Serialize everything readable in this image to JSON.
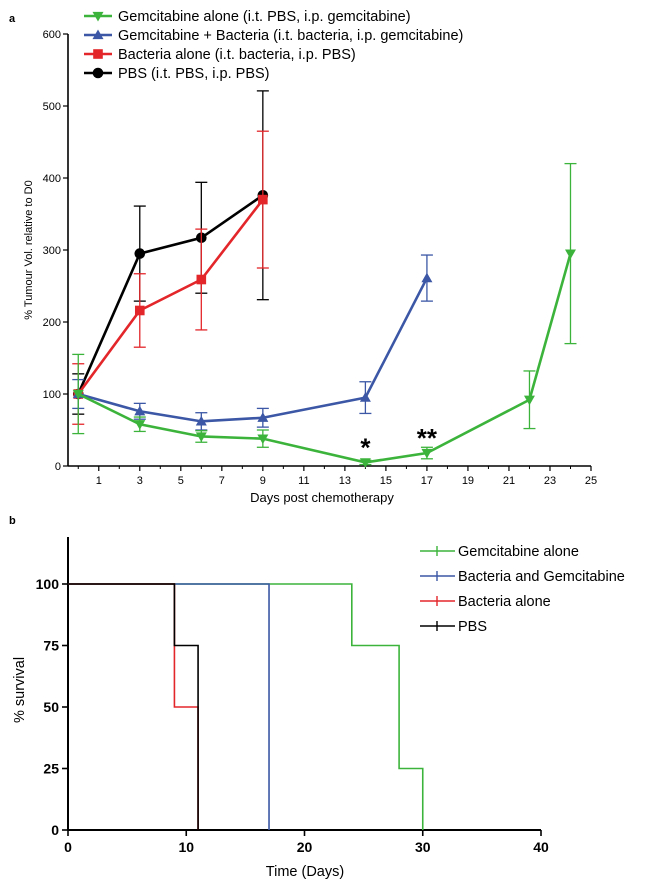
{
  "chart_data": [
    {
      "panel": "a",
      "type": "line",
      "xlabel": "Days post chemotherapy",
      "ylabel": "% Tumour Vol. relative to D0",
      "xlim": [
        -0.5,
        25
      ],
      "ylim": [
        0,
        600
      ],
      "xticks": [
        1,
        3,
        5,
        7,
        9,
        11,
        13,
        15,
        17,
        19,
        21,
        23,
        25
      ],
      "yticks": [
        0,
        100,
        200,
        300,
        400,
        500,
        600
      ],
      "legend_position": "top",
      "series": [
        {
          "name": "Gemcitabine alone (i.t. PBS, i.p. gemcitabine)",
          "color": "#3cb43c",
          "marker": "triangle-down",
          "x": [
            0,
            3,
            6,
            9,
            14,
            17,
            22,
            24
          ],
          "y": [
            100,
            58,
            41,
            38,
            5,
            18,
            92,
            295
          ],
          "err": [
            55,
            10,
            8,
            12,
            3,
            8,
            40,
            125
          ]
        },
        {
          "name": "Gemcitabine + Bacteria (i.t. bacteria, i.p. gemcitabine)",
          "color": "#3b57a5",
          "marker": "triangle-up",
          "x": [
            0,
            3,
            6,
            9,
            14,
            17
          ],
          "y": [
            100,
            76,
            62,
            67,
            95,
            261
          ],
          "err": [
            20,
            11,
            12,
            13,
            22,
            32
          ]
        },
        {
          "name": "Bacteria  alone (i.t. bacteria, i.p. PBS)",
          "color": "#e3262a",
          "marker": "square",
          "x": [
            0,
            3,
            6,
            9
          ],
          "y": [
            100,
            216,
            259,
            370
          ],
          "err": [
            42,
            51,
            70,
            95
          ]
        },
        {
          "name": "PBS (i.t. PBS, i.p. PBS)",
          "color": "#000000",
          "marker": "circle",
          "x": [
            0,
            3,
            6,
            9
          ],
          "y": [
            100,
            295,
            317,
            376
          ],
          "err": [
            28,
            66,
            77,
            145
          ]
        }
      ],
      "annotations": [
        {
          "text": "*",
          "x": 14,
          "y": 5
        },
        {
          "text": "**",
          "x": 17,
          "y": 18
        }
      ]
    },
    {
      "panel": "b",
      "type": "line",
      "step": true,
      "xlabel": "Time  (Days)",
      "ylabel": "% survival",
      "xlim": [
        0,
        40
      ],
      "ylim": [
        0,
        100
      ],
      "xticks": [
        0,
        10,
        20,
        30,
        40
      ],
      "yticks": [
        0,
        25,
        50,
        75,
        100
      ],
      "legend_position": "top-right",
      "series": [
        {
          "name": "Gemcitabine alone",
          "color": "#3cb43c",
          "x": [
            0,
            24,
            28,
            30
          ],
          "y": [
            100,
            75,
            25,
            0
          ]
        },
        {
          "name": "Bacteria and Gemcitabine",
          "color": "#3b57a5",
          "x": [
            0,
            17
          ],
          "y": [
            100,
            0
          ]
        },
        {
          "name": "Bacteria alone",
          "color": "#e3262a",
          "x": [
            0,
            9,
            11
          ],
          "y": [
            100,
            50,
            0
          ]
        },
        {
          "name": "PBS",
          "color": "#000000",
          "x": [
            0,
            9,
            11
          ],
          "y": [
            100,
            75,
            0
          ]
        }
      ]
    }
  ],
  "panels": {
    "a_label": "a",
    "b_label": "b"
  }
}
